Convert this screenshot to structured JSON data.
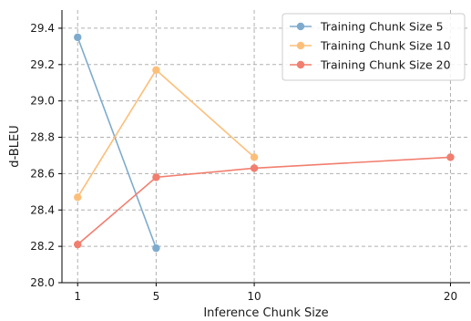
{
  "chart_data": {
    "type": "line",
    "title": "",
    "xlabel": "Inference Chunk Size",
    "ylabel": "d-BLEU",
    "x_ticks": [
      1,
      5,
      10,
      20
    ],
    "y_ticks": [
      28.0,
      28.2,
      28.4,
      28.6,
      28.8,
      29.0,
      29.2,
      29.4
    ],
    "xlim": [
      0.2,
      21.0
    ],
    "ylim": [
      28.0,
      29.5
    ],
    "grid": true,
    "legend_position": "top-right",
    "series": [
      {
        "name": "Training Chunk Size 5",
        "color": "#7eabcd",
        "x": [
          1,
          5
        ],
        "y": [
          29.35,
          28.19
        ]
      },
      {
        "name": "Training Chunk Size 10",
        "color": "#fcbf7a",
        "x": [
          1,
          5,
          10
        ],
        "y": [
          28.47,
          29.17,
          28.69
        ]
      },
      {
        "name": "Training Chunk Size 20",
        "color": "#f17e6e",
        "x": [
          1,
          5,
          10,
          20
        ],
        "y": [
          28.21,
          28.58,
          28.63,
          28.69
        ]
      }
    ]
  }
}
